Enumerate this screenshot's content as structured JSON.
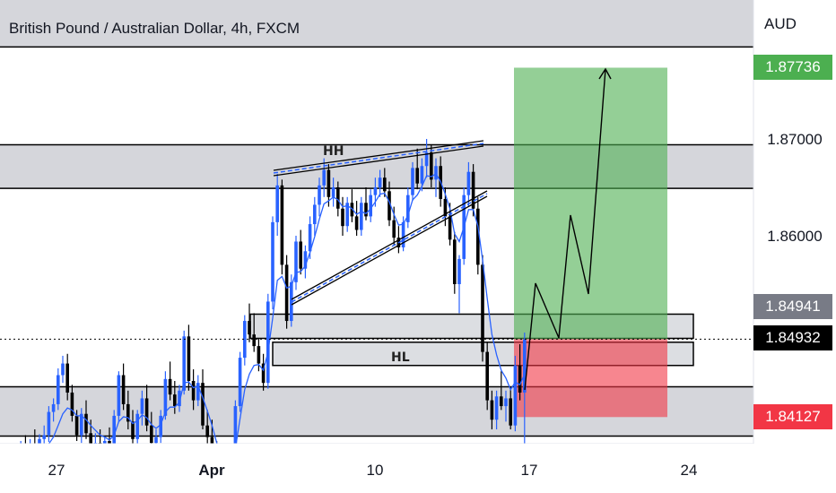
{
  "header": {
    "title": "British Pound / Australian Dollar, 4h, FXCM",
    "currency": "AUD"
  },
  "price_tags": {
    "target": "1.87736",
    "upper_zone": "1.84941",
    "current": "1.84932",
    "stop": "1.84127"
  },
  "colors": {
    "bull": "#2962ff",
    "bear": "#000000",
    "ma": "#2962ff",
    "target_tag": "#4caf50",
    "stop_tag": "#f23645",
    "current_tag": "#000000",
    "upper_tag": "#787b86",
    "profit_fill": "#4caf50",
    "loss_fill": "#f23645",
    "zone_fill": "#b2b5be"
  },
  "chart_data": {
    "type": "candlestick",
    "title": "British Pound / Australian Dollar, 4h, FXCM",
    "ylabel": "AUD",
    "ylim": [
      1.834,
      1.888
    ],
    "y_ticks": [
      "1.87000",
      "1.86000"
    ],
    "x_ticks": [
      "27",
      "Apr",
      "10",
      "17",
      "24"
    ],
    "grid": false,
    "annotations": [
      "HH",
      "HL"
    ],
    "zones": [
      {
        "from": 1.8795,
        "to": 1.8855
      },
      {
        "from": 1.8649,
        "to": 1.8694
      },
      {
        "from": 1.8393,
        "to": 1.8444
      },
      {
        "from": 1.8494,
        "to": 1.8519
      },
      {
        "from": 1.8466,
        "to": 1.849
      }
    ],
    "position": {
      "entry": 1.84932,
      "target": 1.87736,
      "stop": 1.84127
    },
    "candles": [
      [
        1.8368,
        1.838,
        1.836,
        1.8374
      ],
      [
        1.8374,
        1.8388,
        1.8366,
        1.838
      ],
      [
        1.838,
        1.8394,
        1.8372,
        1.8375
      ],
      [
        1.8375,
        1.839,
        1.8368,
        1.8384
      ],
      [
        1.8384,
        1.84,
        1.8376,
        1.8378
      ],
      [
        1.8378,
        1.8395,
        1.837,
        1.839
      ],
      [
        1.839,
        1.8404,
        1.8383,
        1.8394
      ],
      [
        1.8394,
        1.8424,
        1.8387,
        1.8418
      ],
      [
        1.8418,
        1.8432,
        1.8408,
        1.8426
      ],
      [
        1.8426,
        1.8463,
        1.842,
        1.8456
      ],
      [
        1.8456,
        1.8476,
        1.8448,
        1.8468
      ],
      [
        1.8468,
        1.8478,
        1.843,
        1.8438
      ],
      [
        1.8438,
        1.8446,
        1.8408,
        1.8414
      ],
      [
        1.8414,
        1.842,
        1.8388,
        1.8394
      ],
      [
        1.8394,
        1.8422,
        1.8386,
        1.8416
      ],
      [
        1.8416,
        1.843,
        1.839,
        1.8396
      ],
      [
        1.8396,
        1.841,
        1.8374,
        1.8382
      ],
      [
        1.8382,
        1.8396,
        1.837,
        1.8386
      ],
      [
        1.8386,
        1.84,
        1.8372,
        1.8378
      ],
      [
        1.8378,
        1.8392,
        1.8366,
        1.8388
      ],
      [
        1.8388,
        1.8402,
        1.8372,
        1.8376
      ],
      [
        1.8376,
        1.842,
        1.837,
        1.8414
      ],
      [
        1.8414,
        1.846,
        1.8408,
        1.8456
      ],
      [
        1.8456,
        1.8468,
        1.842,
        1.8426
      ],
      [
        1.8426,
        1.844,
        1.84,
        1.8408
      ],
      [
        1.8408,
        1.842,
        1.8384,
        1.839
      ],
      [
        1.839,
        1.842,
        1.8384,
        1.8416
      ],
      [
        1.8416,
        1.844,
        1.8404,
        1.8432
      ],
      [
        1.8432,
        1.8446,
        1.8398,
        1.8404
      ],
      [
        1.8404,
        1.8418,
        1.838,
        1.8386
      ],
      [
        1.8386,
        1.84,
        1.8368,
        1.8392
      ],
      [
        1.8392,
        1.842,
        1.8386,
        1.8414
      ],
      [
        1.8414,
        1.846,
        1.841,
        1.8452
      ],
      [
        1.8452,
        1.847,
        1.843,
        1.8436
      ],
      [
        1.8436,
        1.845,
        1.8416,
        1.8424
      ],
      [
        1.8424,
        1.8446,
        1.8418,
        1.844
      ],
      [
        1.844,
        1.8502,
        1.8436,
        1.8496
      ],
      [
        1.8496,
        1.8508,
        1.844,
        1.845
      ],
      [
        1.845,
        1.8462,
        1.842,
        1.843
      ],
      [
        1.843,
        1.8456,
        1.8424,
        1.8448
      ],
      [
        1.8448,
        1.8462,
        1.84,
        1.8404
      ],
      [
        1.8404,
        1.842,
        1.8384,
        1.8392
      ],
      [
        1.8392,
        1.841,
        1.8372,
        1.8378
      ],
      [
        1.8378,
        1.8388,
        1.834,
        1.8352
      ],
      [
        1.8352,
        1.836,
        1.833,
        1.8336
      ],
      [
        1.8336,
        1.8344,
        1.832,
        1.8326
      ],
      [
        1.8326,
        1.838,
        1.832,
        1.8372
      ],
      [
        1.8372,
        1.843,
        1.8366,
        1.8424
      ],
      [
        1.8424,
        1.848,
        1.8418,
        1.8474
      ],
      [
        1.8474,
        1.8518,
        1.8466,
        1.8512
      ],
      [
        1.8512,
        1.853,
        1.849,
        1.8498
      ],
      [
        1.8498,
        1.852,
        1.848,
        1.8486
      ],
      [
        1.8486,
        1.8494,
        1.846,
        1.8468
      ],
      [
        1.8468,
        1.8478,
        1.844,
        1.8448
      ],
      [
        1.8448,
        1.854,
        1.8442,
        1.8532
      ],
      [
        1.8532,
        1.862,
        1.8524,
        1.8614
      ],
      [
        1.8614,
        1.8664,
        1.86,
        1.8652
      ],
      [
        1.8652,
        1.8658,
        1.856,
        1.857
      ],
      [
        1.857,
        1.858,
        1.8504,
        1.8512
      ],
      [
        1.8512,
        1.856,
        1.8506,
        1.8552
      ],
      [
        1.8552,
        1.86,
        1.8544,
        1.8594
      ],
      [
        1.8594,
        1.8606,
        1.856,
        1.8566
      ],
      [
        1.8566,
        1.859,
        1.8556,
        1.8584
      ],
      [
        1.8584,
        1.862,
        1.8576,
        1.8612
      ],
      [
        1.8612,
        1.864,
        1.86,
        1.8632
      ],
      [
        1.8632,
        1.866,
        1.862,
        1.8652
      ],
      [
        1.8652,
        1.868,
        1.864,
        1.8668
      ],
      [
        1.8668,
        1.8674,
        1.863,
        1.864
      ],
      [
        1.864,
        1.866,
        1.863,
        1.865
      ],
      [
        1.865,
        1.8656,
        1.862,
        1.8628
      ],
      [
        1.8628,
        1.864,
        1.86,
        1.861
      ],
      [
        1.861,
        1.864,
        1.8604,
        1.8634
      ],
      [
        1.8634,
        1.8648,
        1.8614,
        1.862
      ],
      [
        1.862,
        1.8636,
        1.86,
        1.8606
      ],
      [
        1.8606,
        1.864,
        1.86,
        1.8634
      ],
      [
        1.8634,
        1.865,
        1.8616,
        1.862
      ],
      [
        1.862,
        1.8648,
        1.8614,
        1.8642
      ],
      [
        1.8642,
        1.866,
        1.863,
        1.865
      ],
      [
        1.865,
        1.8668,
        1.864,
        1.866
      ],
      [
        1.866,
        1.867,
        1.864,
        1.8646
      ],
      [
        1.8646,
        1.8656,
        1.861,
        1.8616
      ],
      [
        1.8616,
        1.863,
        1.859,
        1.8598
      ],
      [
        1.8598,
        1.861,
        1.8582,
        1.8588
      ],
      [
        1.8588,
        1.862,
        1.8584,
        1.8614
      ],
      [
        1.8614,
        1.865,
        1.8608,
        1.8642
      ],
      [
        1.8642,
        1.8676,
        1.8636,
        1.867
      ],
      [
        1.867,
        1.869,
        1.8648,
        1.8654
      ],
      [
        1.8654,
        1.868,
        1.8646,
        1.8672
      ],
      [
        1.8672,
        1.87,
        1.866,
        1.8686
      ],
      [
        1.8686,
        1.8694,
        1.865,
        1.8658
      ],
      [
        1.8658,
        1.868,
        1.864,
        1.8672
      ],
      [
        1.8672,
        1.8682,
        1.863,
        1.8638
      ],
      [
        1.8638,
        1.865,
        1.861,
        1.862
      ],
      [
        1.862,
        1.8634,
        1.859,
        1.8596
      ],
      [
        1.8596,
        1.8604,
        1.854,
        1.855
      ],
      [
        1.855,
        1.858,
        1.852,
        1.8576
      ],
      [
        1.8576,
        1.865,
        1.857,
        1.8642
      ],
      [
        1.8642,
        1.8676,
        1.863,
        1.8666
      ],
      [
        1.8666,
        1.8674,
        1.862,
        1.8628
      ],
      [
        1.8628,
        1.864,
        1.856,
        1.857
      ],
      [
        1.857,
        1.858,
        1.847,
        1.848
      ],
      [
        1.848,
        1.849,
        1.842,
        1.843
      ],
      [
        1.843,
        1.844,
        1.84,
        1.841
      ],
      [
        1.841,
        1.844,
        1.84,
        1.8434
      ],
      [
        1.8434,
        1.846,
        1.842,
        1.8424
      ],
      [
        1.8424,
        1.844,
        1.8408,
        1.8432
      ],
      [
        1.8432,
        1.8444,
        1.84,
        1.8404
      ],
      [
        1.8404,
        1.8476,
        1.8398,
        1.8466
      ],
      [
        1.8466,
        1.8488,
        1.843,
        1.8438
      ],
      [
        1.8438,
        1.85,
        1.838,
        1.8493
      ]
    ],
    "ma": [
      1.8375,
      1.8376,
      1.8376,
      1.8377,
      1.8377,
      1.8378,
      1.838,
      1.8385,
      1.8392,
      1.8404,
      1.8416,
      1.8422,
      1.842,
      1.8414,
      1.8414,
      1.841,
      1.8404,
      1.8399,
      1.8394,
      1.8392,
      1.8389,
      1.8394,
      1.8408,
      1.8413,
      1.8412,
      1.8406,
      1.8409,
      1.8415,
      1.8412,
      1.8405,
      1.8401,
      1.8405,
      1.8418,
      1.8423,
      1.8423,
      1.8428,
      1.8448,
      1.8449,
      1.8443,
      1.8445,
      1.8433,
      1.8419,
      1.8404,
      1.8386,
      1.837,
      1.8356,
      1.836,
      1.838,
      1.8411,
      1.8441,
      1.8457,
      1.8466,
      1.8467,
      1.8461,
      1.848,
      1.8515,
      1.8554,
      1.8558,
      1.8546,
      1.8548,
      1.8562,
      1.8563,
      1.8569,
      1.8583,
      1.8599,
      1.8617,
      1.8633,
      1.8636,
      1.864,
      1.8637,
      1.863,
      1.8631,
      1.8628,
      1.8622,
      1.8625,
      1.8623,
      1.8628,
      1.8635,
      1.8643,
      1.8644,
      1.8635,
      1.8622,
      1.8611,
      1.8612,
      1.8621,
      1.8637,
      1.8642,
      1.8651,
      1.8662,
      1.8661,
      1.8664,
      1.8656,
      1.8643,
      1.8628,
      1.8602,
      1.8594,
      1.8609,
      1.8627,
      1.8627,
      1.861,
      1.8575,
      1.8535,
      1.8498,
      1.8477,
      1.8461,
      1.8453,
      1.8441,
      1.8449,
      1.8446,
      1.8457
    ]
  }
}
